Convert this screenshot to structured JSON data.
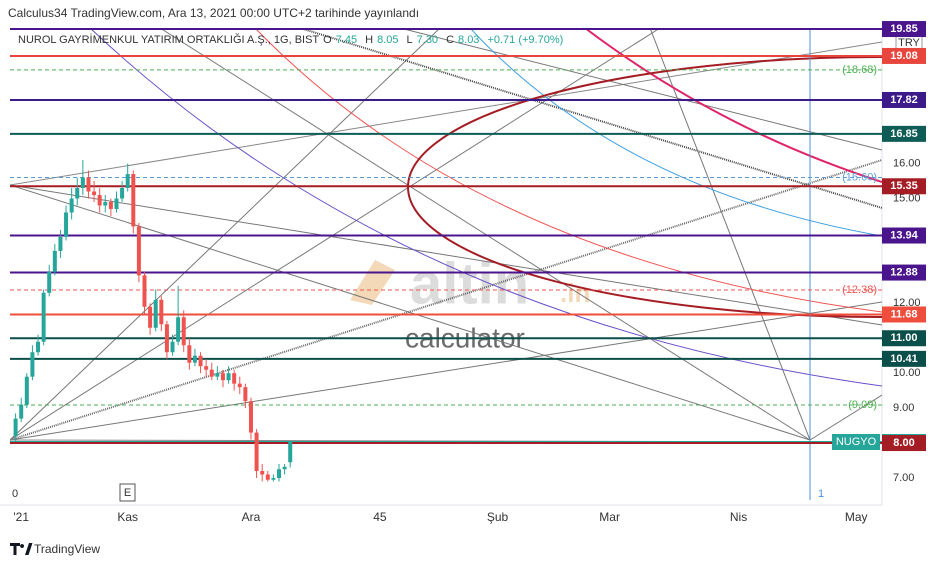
{
  "header": "Calculus34 TradingView.com, Ara 13, 2021 00:00 UTC+2 tarihinde yayınlandı",
  "chart_data": {
    "type": "candlestick",
    "title": "NUROL GAYRİMENKUL YATIRIM ORTAKLIĞI A.Ş., 1G, BIST",
    "ohlc_legend": [
      {
        "label": "O",
        "value": "7.45"
      },
      {
        "label": "H",
        "value": "8.05"
      },
      {
        "label": "L",
        "value": "7.30"
      },
      {
        "label": "C",
        "value": "8.03"
      }
    ],
    "change": "+0.71 (+9.70%)",
    "currency": "TRY",
    "symbol_tag": "NUGYO",
    "x": [
      -20,
      -19,
      -18,
      -17,
      -16,
      -15,
      -14,
      -13,
      -12,
      -11,
      -10,
      -9,
      -8,
      -7,
      -6,
      -5,
      -4,
      -3,
      -2,
      -1,
      0,
      1,
      2,
      3,
      4,
      5,
      6,
      7,
      8,
      9,
      10,
      11,
      12,
      13,
      14,
      15,
      16,
      17,
      18,
      19,
      20,
      21,
      22,
      23,
      24,
      25,
      26,
      27,
      28,
      29
    ],
    "open": [
      8.2,
      8.7,
      9.1,
      9.9,
      10.6,
      10.9,
      12.3,
      12.9,
      13.5,
      13.9,
      14.6,
      15.0,
      15.3,
      15.6,
      15.2,
      15.1,
      14.8,
      14.9,
      14.7,
      15.0,
      15.3,
      15.7,
      14.2,
      12.8,
      11.9,
      11.3,
      12.1,
      11.4,
      10.6,
      10.9,
      11.6,
      10.8,
      10.3,
      10.5,
      10.2,
      10.1,
      9.9,
      10.0,
      9.8,
      10.0,
      9.7,
      9.6,
      9.2,
      8.3,
      7.2,
      7.1,
      6.95,
      7.0,
      7.25,
      7.45
    ],
    "high": [
      8.85,
      9.3,
      10.0,
      10.8,
      11.1,
      12.4,
      13.1,
      13.7,
      14.1,
      14.8,
      15.3,
      15.6,
      16.1,
      15.8,
      15.5,
      15.3,
      15.1,
      15.0,
      15.2,
      15.5,
      16.0,
      15.8,
      14.3,
      12.9,
      12.0,
      12.4,
      12.2,
      11.5,
      11.1,
      12.5,
      11.8,
      11.0,
      10.7,
      10.6,
      10.4,
      10.3,
      10.2,
      10.1,
      10.2,
      10.1,
      9.9,
      9.7,
      9.3,
      8.4,
      7.4,
      7.2,
      7.1,
      7.4,
      7.4,
      8.05
    ],
    "low": [
      8.05,
      8.6,
      9.0,
      9.8,
      10.5,
      10.8,
      12.2,
      12.8,
      13.3,
      13.8,
      14.4,
      14.8,
      15.1,
      15.0,
      14.9,
      14.6,
      14.6,
      14.5,
      14.6,
      14.9,
      15.2,
      14.0,
      12.6,
      11.7,
      11.1,
      11.2,
      11.2,
      10.4,
      10.5,
      10.8,
      10.6,
      10.1,
      10.2,
      10.0,
      9.9,
      9.8,
      9.8,
      9.6,
      9.7,
      9.5,
      9.4,
      9.0,
      8.1,
      7.0,
      6.9,
      6.9,
      6.9,
      6.9,
      7.1,
      7.3
    ],
    "close": [
      8.7,
      9.1,
      9.9,
      10.6,
      10.9,
      12.3,
      12.9,
      13.5,
      13.9,
      14.6,
      15.0,
      15.3,
      15.6,
      15.2,
      15.1,
      14.8,
      14.9,
      14.7,
      15.0,
      15.3,
      15.7,
      14.2,
      12.8,
      11.9,
      11.3,
      12.1,
      11.4,
      10.6,
      10.9,
      11.6,
      10.8,
      10.3,
      10.5,
      10.2,
      10.1,
      9.9,
      10.0,
      9.8,
      10.0,
      9.7,
      9.6,
      9.2,
      8.3,
      7.2,
      7.1,
      6.95,
      7.0,
      7.25,
      7.32,
      8.03
    ],
    "up_color": "#26a69a",
    "down_color": "#ef5350",
    "xlim": [
      -21,
      134.6
    ],
    "xticks": [
      {
        "value": -19,
        "label": "'21"
      },
      {
        "value": 0,
        "label": "Kas"
      },
      {
        "value": 22,
        "label": "Ara"
      },
      45,
      {
        "value": 66,
        "label": "Şub"
      },
      {
        "value": 86,
        "label": "Mar"
      },
      {
        "value": 109,
        "label": "Nis"
      },
      {
        "value": 130,
        "label": "May"
      }
    ],
    "ylim": [
      6.37,
      19.88
    ],
    "yticks": [
      {
        "value": 7,
        "label": "7.00"
      },
      {
        "value": 9,
        "label": "9.00"
      },
      {
        "value": 10,
        "label": "10.00"
      },
      {
        "value": 12,
        "label": "12.00"
      },
      {
        "value": 15,
        "label": "15.00"
      },
      {
        "value": 16,
        "label": "16.00"
      }
    ],
    "levels": [
      {
        "value": 19.85,
        "color": "#4a148c"
      },
      {
        "value": 19.08,
        "color": "#e8453c"
      },
      {
        "value": 17.82,
        "color": "#3c1a8a"
      },
      {
        "value": 16.85,
        "color": "#0d5c55"
      },
      {
        "value": 15.35,
        "color": "#a51d24"
      },
      {
        "value": 13.94,
        "color": "#4a148c"
      },
      {
        "value": 12.88,
        "color": "#4a148c"
      },
      {
        "value": 11.68,
        "color": "#ef4e3d"
      },
      {
        "value": 11,
        "label": "11.00",
        "color": "#0b4f4a"
      },
      {
        "value": 10.41,
        "color": "#0b4f4a"
      },
      {
        "value": 8.03,
        "color": "#26a69a"
      },
      {
        "value": 8,
        "label": "8.00",
        "color": "#a51d24"
      }
    ],
    "dashed_levels": [
      {
        "value": 18.68,
        "label": "(18.68)",
        "color": "#4caf50"
      },
      {
        "value": 15.6,
        "label": "(15.60)",
        "color": "#5b9bd5"
      },
      {
        "value": 12.38,
        "label": "(12.38)",
        "color": "#ef5350"
      },
      {
        "value": 9.09,
        "label": "(9.09)",
        "color": "#4caf50"
      }
    ]
  },
  "annotations": {
    "earnings": "E",
    "left_marker": "0",
    "right_marker": "1"
  },
  "watermark": {
    "brand": "altin",
    "suffix": ".in",
    "subtitle": "calculator"
  },
  "footer": "TradingView"
}
